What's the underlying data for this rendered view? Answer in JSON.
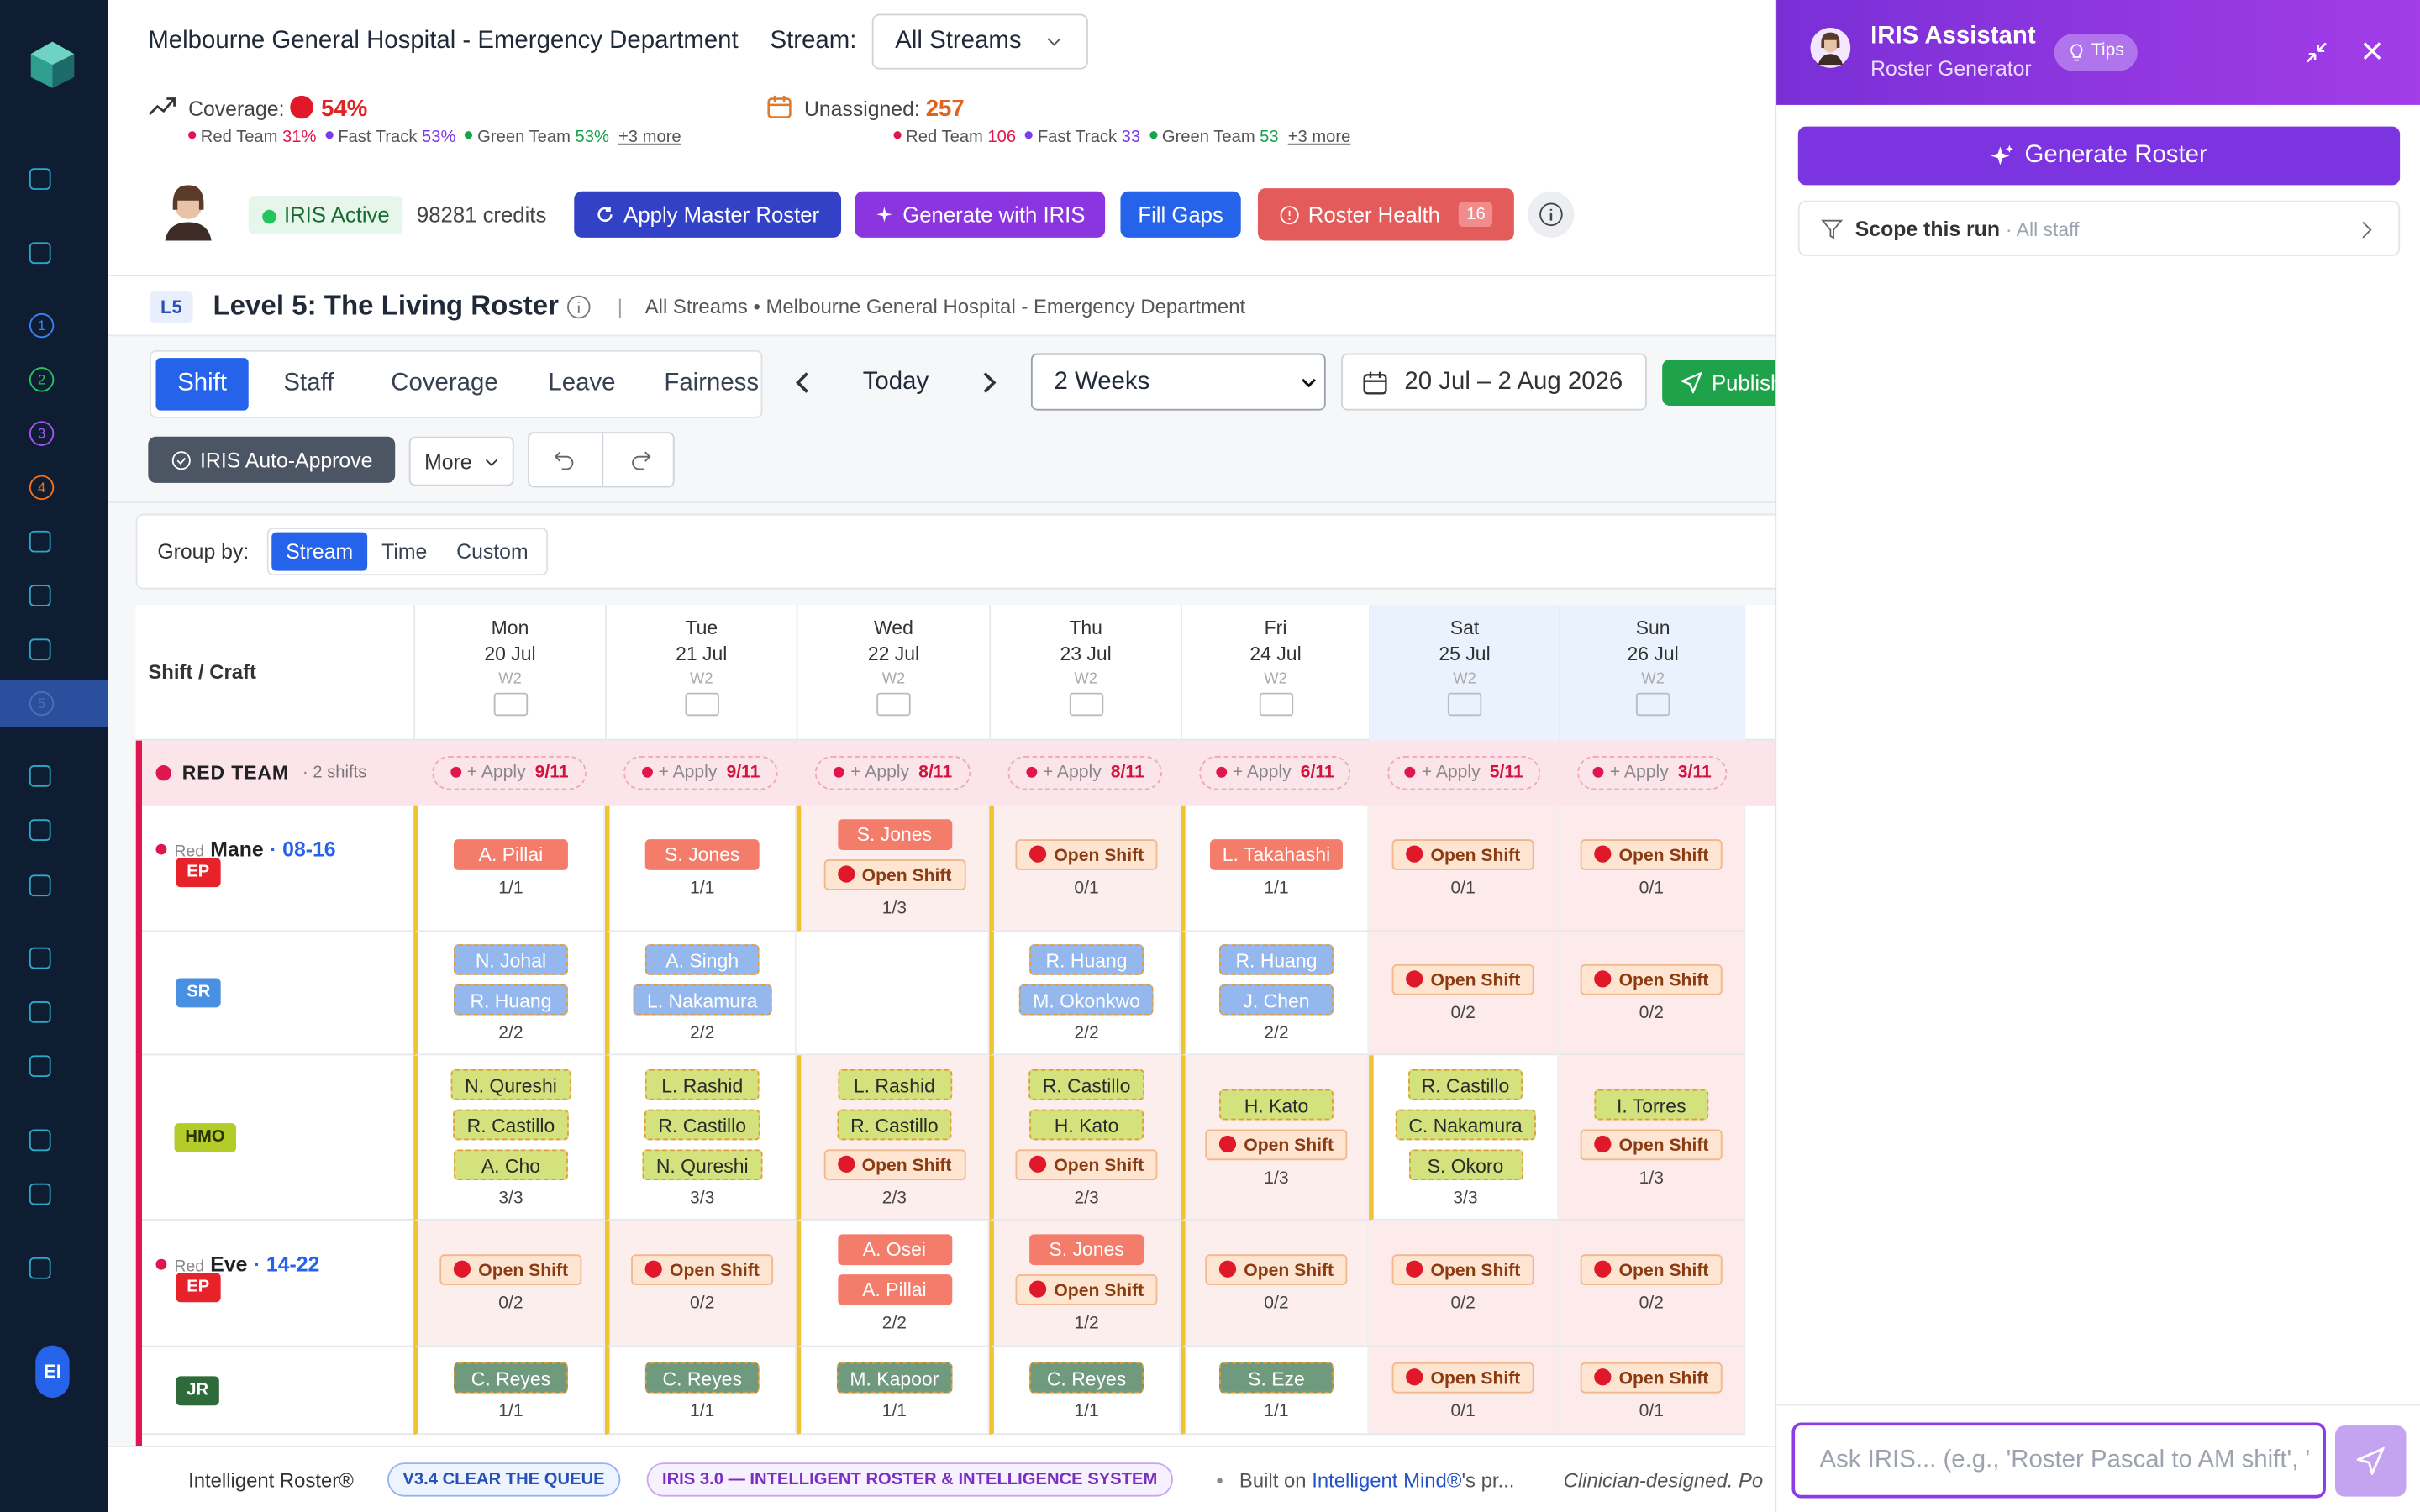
{
  "sidebar": {
    "badges": [
      "1",
      "2",
      "3",
      "4",
      "5"
    ],
    "user": "EI"
  },
  "header": {
    "hospital": "Melbourne General Hospital - Emergency Department",
    "stream_label": "Stream:",
    "stream_value": "All Streams",
    "coverage": {
      "label": "Coverage:",
      "value": "54%",
      "breakdown": [
        {
          "team": "Red Team",
          "value": "31%",
          "color": "#e0174f"
        },
        {
          "team": "Fast Track",
          "value": "53%",
          "color": "#7c3aed"
        },
        {
          "team": "Green Team",
          "value": "53%",
          "color": "#16a34a"
        }
      ],
      "more": "+3 more"
    },
    "unassigned": {
      "label": "Unassigned:",
      "value": "257",
      "breakdown": [
        {
          "team": "Red Team",
          "value": "106",
          "color": "#e0174f"
        },
        {
          "team": "Fast Track",
          "value": "33",
          "color": "#7c3aed"
        },
        {
          "team": "Green Team",
          "value": "53",
          "color": "#16a34a"
        }
      ],
      "more": "+3 more"
    }
  },
  "toolbar": {
    "status": "IRIS Active",
    "credits": "98281 credits",
    "apply_master": "Apply Master Roster",
    "generate": "Generate with IRIS",
    "fill_gaps": "Fill Gaps",
    "health": "Roster Health",
    "health_count": "16"
  },
  "level": {
    "badge": "L5",
    "title": "Level 5: The Living Roster",
    "separator": "|",
    "context": "All Streams • Melbourne General Hospital - Emergency Department"
  },
  "views": {
    "tabs": [
      "Shift",
      "Staff",
      "Coverage",
      "Leave",
      "Fairness"
    ],
    "active": 0,
    "today": "Today",
    "period": "2 Weeks",
    "range": "20 Jul – 2 Aug 2026",
    "publish": "Publish"
  },
  "actions": {
    "auto_approve": "IRIS Auto-Approve",
    "more": "More"
  },
  "group_by": {
    "label": "Group by:",
    "options": [
      "Stream",
      "Time",
      "Custom"
    ],
    "active": 0
  },
  "grid": {
    "corner": "Shift / Craft",
    "open_label": "Open Shift",
    "days": [
      {
        "dow": "Mon",
        "date": "20 Jul",
        "week": "W2",
        "weekend": false
      },
      {
        "dow": "Tue",
        "date": "21 Jul",
        "week": "W2",
        "weekend": false
      },
      {
        "dow": "Wed",
        "date": "22 Jul",
        "week": "W2",
        "weekend": false
      },
      {
        "dow": "Thu",
        "date": "23 Jul",
        "week": "W2",
        "weekend": false
      },
      {
        "dow": "Fri",
        "date": "24 Jul",
        "week": "W2",
        "weekend": false
      },
      {
        "dow": "Sat",
        "date": "25 Jul",
        "week": "W2",
        "weekend": true
      },
      {
        "dow": "Sun",
        "date": "26 Jul",
        "week": "W2",
        "weekend": true
      }
    ],
    "team": {
      "name": "RED TEAM",
      "note": "· 2 shifts",
      "apply": "+ Apply",
      "counts": [
        "9/11",
        "9/11",
        "8/11",
        "8/11",
        "6/11",
        "5/11",
        "3/11"
      ]
    },
    "rows": [
      {
        "stream": "Red",
        "shift": "Mane",
        "time": "· 08-16",
        "role": "EP",
        "role_color": "#e8222b",
        "chip_color": "#f47c6a",
        "chip_text": "#ffffff",
        "cells": [
          {
            "staff": [
              "A. Pillai"
            ],
            "fill": "1/1"
          },
          {
            "staff": [
              "S. Jones"
            ],
            "fill": "1/1"
          },
          {
            "staff": [
              "S. Jones",
              "Open Shift"
            ],
            "fill": "1/3"
          },
          {
            "staff": [
              "Open Shift"
            ],
            "fill": "0/1"
          },
          {
            "staff": [
              "L. Takahashi"
            ],
            "fill": "1/1"
          },
          {
            "staff": [
              "Open Shift"
            ],
            "fill": "0/1"
          },
          {
            "staff": [
              "Open Shift"
            ],
            "fill": "0/1"
          }
        ]
      },
      {
        "stream": null,
        "shift": null,
        "time": null,
        "role": "SR",
        "role_color": "#4a90e2",
        "chip_color": "#94b8ee",
        "chip_text": "#ffffff",
        "cells": [
          {
            "staff": [
              "N. Johal",
              "R. Huang"
            ],
            "fill": "2/2"
          },
          {
            "staff": [
              "A. Singh",
              "L. Nakamura"
            ],
            "fill": "2/2"
          },
          {
            "staff": [],
            "fill": null
          },
          {
            "staff": [
              "R. Huang",
              "M. Okonkwo"
            ],
            "fill": "2/2"
          },
          {
            "staff": [
              "R. Huang",
              "J. Chen"
            ],
            "fill": "2/2"
          },
          {
            "staff": [
              "Open Shift"
            ],
            "fill": "0/2"
          },
          {
            "staff": [
              "Open Shift"
            ],
            "fill": "0/2"
          }
        ]
      },
      {
        "stream": null,
        "shift": null,
        "time": null,
        "role": "HMO",
        "role_color": "#b4cc2a",
        "chip_color": "#d3e27c",
        "chip_text": "#2a2a2a",
        "cells": [
          {
            "staff": [
              "N. Qureshi",
              "R. Castillo",
              "A. Cho"
            ],
            "fill": "3/3"
          },
          {
            "staff": [
              "L. Rashid",
              "R. Castillo",
              "N. Qureshi"
            ],
            "fill": "3/3"
          },
          {
            "staff": [
              "L. Rashid",
              "R. Castillo",
              "Open Shift"
            ],
            "fill": "2/3"
          },
          {
            "staff": [
              "R. Castillo",
              "H. Kato",
              "Open Shift"
            ],
            "fill": "2/3"
          },
          {
            "staff": [
              "H. Kato",
              "Open Shift"
            ],
            "fill": "1/3"
          },
          {
            "staff": [
              "R. Castillo",
              "C. Nakamura",
              "S. Okoro"
            ],
            "fill": "3/3"
          },
          {
            "staff": [
              "I. Torres",
              "Open Shift"
            ],
            "fill": "1/3"
          }
        ]
      },
      {
        "stream": "Red",
        "shift": "Eve",
        "time": "· 14-22",
        "role": "EP",
        "role_color": "#e8222b",
        "chip_color": "#f47c6a",
        "chip_text": "#ffffff",
        "cells": [
          {
            "staff": [
              "Open Shift"
            ],
            "fill": "0/2"
          },
          {
            "staff": [
              "Open Shift"
            ],
            "fill": "0/2"
          },
          {
            "staff": [
              "A. Osei",
              "A. Pillai"
            ],
            "fill": "2/2"
          },
          {
            "staff": [
              "S. Jones",
              "Open Shift"
            ],
            "fill": "1/2"
          },
          {
            "staff": [
              "Open Shift"
            ],
            "fill": "0/2"
          },
          {
            "staff": [
              "Open Shift"
            ],
            "fill": "0/2"
          },
          {
            "staff": [
              "Open Shift"
            ],
            "fill": "0/2"
          }
        ]
      },
      {
        "stream": null,
        "shift": null,
        "time": null,
        "role": "JR",
        "role_color": "#2f6b3a",
        "chip_color": "#6f9a7e",
        "chip_text": "#ffffff",
        "cells": [
          {
            "staff": [
              "C. Reyes"
            ],
            "fill": "1/1"
          },
          {
            "staff": [
              "C. Reyes"
            ],
            "fill": "1/1"
          },
          {
            "staff": [
              "M. Kapoor"
            ],
            "fill": "1/1"
          },
          {
            "staff": [
              "C. Reyes"
            ],
            "fill": "1/1"
          },
          {
            "staff": [
              "S. Eze"
            ],
            "fill": "1/1"
          },
          {
            "staff": [
              "Open Shift"
            ],
            "fill": "0/1"
          },
          {
            "staff": [
              "Open Shift"
            ],
            "fill": "0/1"
          }
        ]
      }
    ]
  },
  "footer": {
    "brand": "Intelligent Roster®",
    "version": "V3.4 CLEAR THE QUEUE",
    "system": "IRIS 3.0 — INTELLIGENT ROSTER & INTELLIGENCE SYSTEM",
    "dot": "•",
    "built_on": "Built on",
    "mind": "Intelligent Mind®",
    "suffix": "'s pr...",
    "tagline": "Clinician-designed. Po"
  },
  "assistant": {
    "title": "IRIS Assistant",
    "subtitle": "Roster Generator",
    "tips": "Tips",
    "generate": "Generate Roster",
    "scope": "Scope this run",
    "scope_note": "· All staff",
    "placeholder": "Ask IRIS... (e.g., 'Roster Pascal to AM shift', '"
  }
}
